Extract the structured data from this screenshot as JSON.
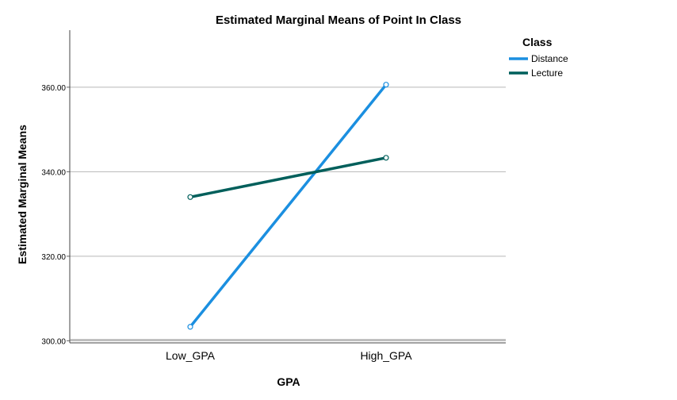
{
  "chart_data": {
    "type": "line",
    "title": "Estimated Marginal Means of Point In Class",
    "xlabel": "GPA",
    "ylabel": "Estimated Marginal Means",
    "categories": [
      "Low_GPA",
      "High_GPA"
    ],
    "series": [
      {
        "name": "Distance",
        "values": [
          303.3,
          360.6
        ],
        "color": "#1b8fe0"
      },
      {
        "name": "Lecture",
        "values": [
          334.0,
          343.3
        ],
        "color": "#005f5b"
      }
    ],
    "ylim": [
      299.5,
      373.5
    ],
    "yticks": [
      300,
      320,
      340,
      360
    ],
    "ytick_labels": [
      "300.00",
      "320.00",
      "340.00",
      "360.00"
    ],
    "grid": true,
    "legend_title": "Class",
    "legend_position": "top-right"
  }
}
